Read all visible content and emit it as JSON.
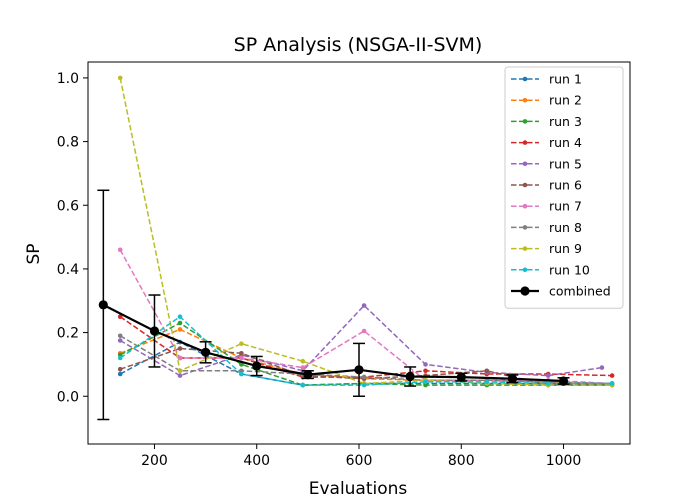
{
  "chart_data": {
    "type": "line",
    "title": "SP Analysis (NSGA-II-SVM)",
    "xlabel": "Evaluations",
    "ylabel": "SP",
    "xlim": [
      70,
      1130
    ],
    "ylim": [
      -0.15,
      1.05
    ],
    "xticks": [
      200,
      400,
      600,
      800,
      1000
    ],
    "yticks": [
      0.0,
      0.2,
      0.4,
      0.6,
      0.8,
      1.0
    ],
    "xtick_labels": [
      "200",
      "400",
      "600",
      "800",
      "1000"
    ],
    "ytick_labels": [
      "0.0",
      "0.2",
      "0.4",
      "0.6",
      "0.8",
      "1.0"
    ],
    "grid": false,
    "legend_position": "top-right",
    "series": [
      {
        "name": "run 1",
        "color": "#1f77b4",
        "points": [
          [
            133,
            0.07
          ],
          [
            250,
            0.17
          ],
          [
            370,
            0.07
          ],
          [
            490,
            0.035
          ],
          [
            610,
            0.04
          ],
          [
            730,
            0.04
          ],
          [
            850,
            0.04
          ],
          [
            970,
            0.04
          ],
          [
            1095,
            0.04
          ]
        ]
      },
      {
        "name": "run 2",
        "color": "#ff7f0e",
        "points": [
          [
            133,
            0.135
          ],
          [
            250,
            0.21
          ],
          [
            370,
            0.12
          ],
          [
            490,
            0.07
          ],
          [
            610,
            0.055
          ],
          [
            730,
            0.05
          ],
          [
            850,
            0.05
          ],
          [
            970,
            0.045
          ],
          [
            1095,
            0.035
          ]
        ]
      },
      {
        "name": "run 3",
        "color": "#2ca02c",
        "points": [
          [
            133,
            0.13
          ],
          [
            250,
            0.23
          ],
          [
            370,
            0.1
          ],
          [
            490,
            0.035
          ],
          [
            610,
            0.04
          ],
          [
            730,
            0.035
          ],
          [
            850,
            0.035
          ],
          [
            970,
            0.035
          ],
          [
            1095,
            0.035
          ]
        ]
      },
      {
        "name": "run 4",
        "color": "#d62728",
        "points": [
          [
            133,
            0.25
          ],
          [
            250,
            0.12
          ],
          [
            370,
            0.12
          ],
          [
            490,
            0.06
          ],
          [
            610,
            0.06
          ],
          [
            730,
            0.08
          ],
          [
            850,
            0.07
          ],
          [
            970,
            0.07
          ],
          [
            1095,
            0.065
          ]
        ]
      },
      {
        "name": "run 5",
        "color": "#9467bd",
        "points": [
          [
            133,
            0.175
          ],
          [
            250,
            0.065
          ],
          [
            370,
            0.13
          ],
          [
            490,
            0.08
          ],
          [
            610,
            0.285
          ],
          [
            730,
            0.1
          ],
          [
            850,
            0.075
          ],
          [
            970,
            0.065
          ],
          [
            1075,
            0.09
          ]
        ]
      },
      {
        "name": "run 6",
        "color": "#8c564b",
        "points": [
          [
            133,
            0.085
          ],
          [
            250,
            0.15
          ],
          [
            370,
            0.135
          ],
          [
            490,
            0.065
          ],
          [
            610,
            0.055
          ],
          [
            730,
            0.065
          ],
          [
            850,
            0.08
          ],
          [
            970,
            0.035
          ],
          [
            1095,
            0.04
          ]
        ]
      },
      {
        "name": "run 7",
        "color": "#e377c2",
        "points": [
          [
            133,
            0.46
          ],
          [
            250,
            0.12
          ],
          [
            370,
            0.12
          ],
          [
            490,
            0.09
          ],
          [
            610,
            0.205
          ],
          [
            730,
            0.05
          ],
          [
            850,
            0.05
          ],
          [
            970,
            0.05
          ],
          [
            1095,
            0.04
          ]
        ]
      },
      {
        "name": "run 8",
        "color": "#7f7f7f",
        "points": [
          [
            133,
            0.19
          ],
          [
            250,
            0.08
          ],
          [
            370,
            0.08
          ],
          [
            490,
            0.07
          ],
          [
            610,
            0.06
          ],
          [
            730,
            0.05
          ],
          [
            850,
            0.05
          ],
          [
            970,
            0.045
          ],
          [
            1095,
            0.04
          ]
        ]
      },
      {
        "name": "run 9",
        "color": "#bcbd22",
        "points": [
          [
            133,
            1.0
          ],
          [
            250,
            0.08
          ],
          [
            370,
            0.165
          ],
          [
            490,
            0.11
          ],
          [
            610,
            0.04
          ],
          [
            730,
            0.05
          ],
          [
            850,
            0.04
          ],
          [
            970,
            0.035
          ],
          [
            1095,
            0.035
          ]
        ]
      },
      {
        "name": "run 10",
        "color": "#17becf",
        "points": [
          [
            133,
            0.12
          ],
          [
            250,
            0.25
          ],
          [
            370,
            0.07
          ],
          [
            490,
            0.035
          ],
          [
            610,
            0.035
          ],
          [
            730,
            0.045
          ],
          [
            850,
            0.045
          ],
          [
            970,
            0.04
          ],
          [
            1095,
            0.04
          ]
        ]
      }
    ],
    "combined": {
      "name": "combined",
      "color": "#000000",
      "points": [
        [
          100,
          0.287
        ],
        [
          200,
          0.205
        ],
        [
          300,
          0.138
        ],
        [
          400,
          0.095
        ],
        [
          500,
          0.068
        ],
        [
          600,
          0.083
        ],
        [
          700,
          0.062
        ],
        [
          800,
          0.06
        ],
        [
          900,
          0.055
        ],
        [
          1000,
          0.048
        ]
      ],
      "errors": [
        0.36,
        0.113,
        0.033,
        0.03,
        0.012,
        0.083,
        0.03,
        0.012,
        0.012,
        0.01
      ]
    }
  }
}
